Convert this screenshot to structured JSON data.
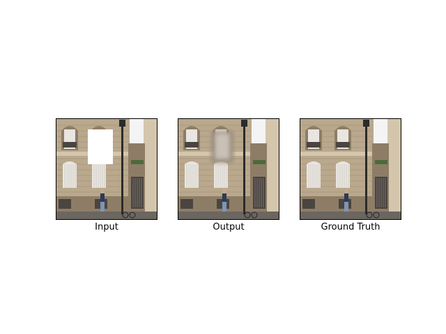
{
  "figure": {
    "panels": [
      {
        "caption": "Input",
        "variant": "masked"
      },
      {
        "caption": "Output",
        "variant": "inpainted"
      },
      {
        "caption": "Ground Truth",
        "variant": "original"
      }
    ]
  },
  "palette": {
    "stone": "#b9a88c",
    "stone_dark": "#8e7d66",
    "stone_light": "#d4c6ad",
    "sky": "#f4f4f4",
    "window_white": "#e9e6e1",
    "shadow": "#4a4540",
    "street": "#6b6660",
    "lamp": "#2b2b2b",
    "mask": "#ffffff",
    "blur": "#9b8e7e"
  }
}
